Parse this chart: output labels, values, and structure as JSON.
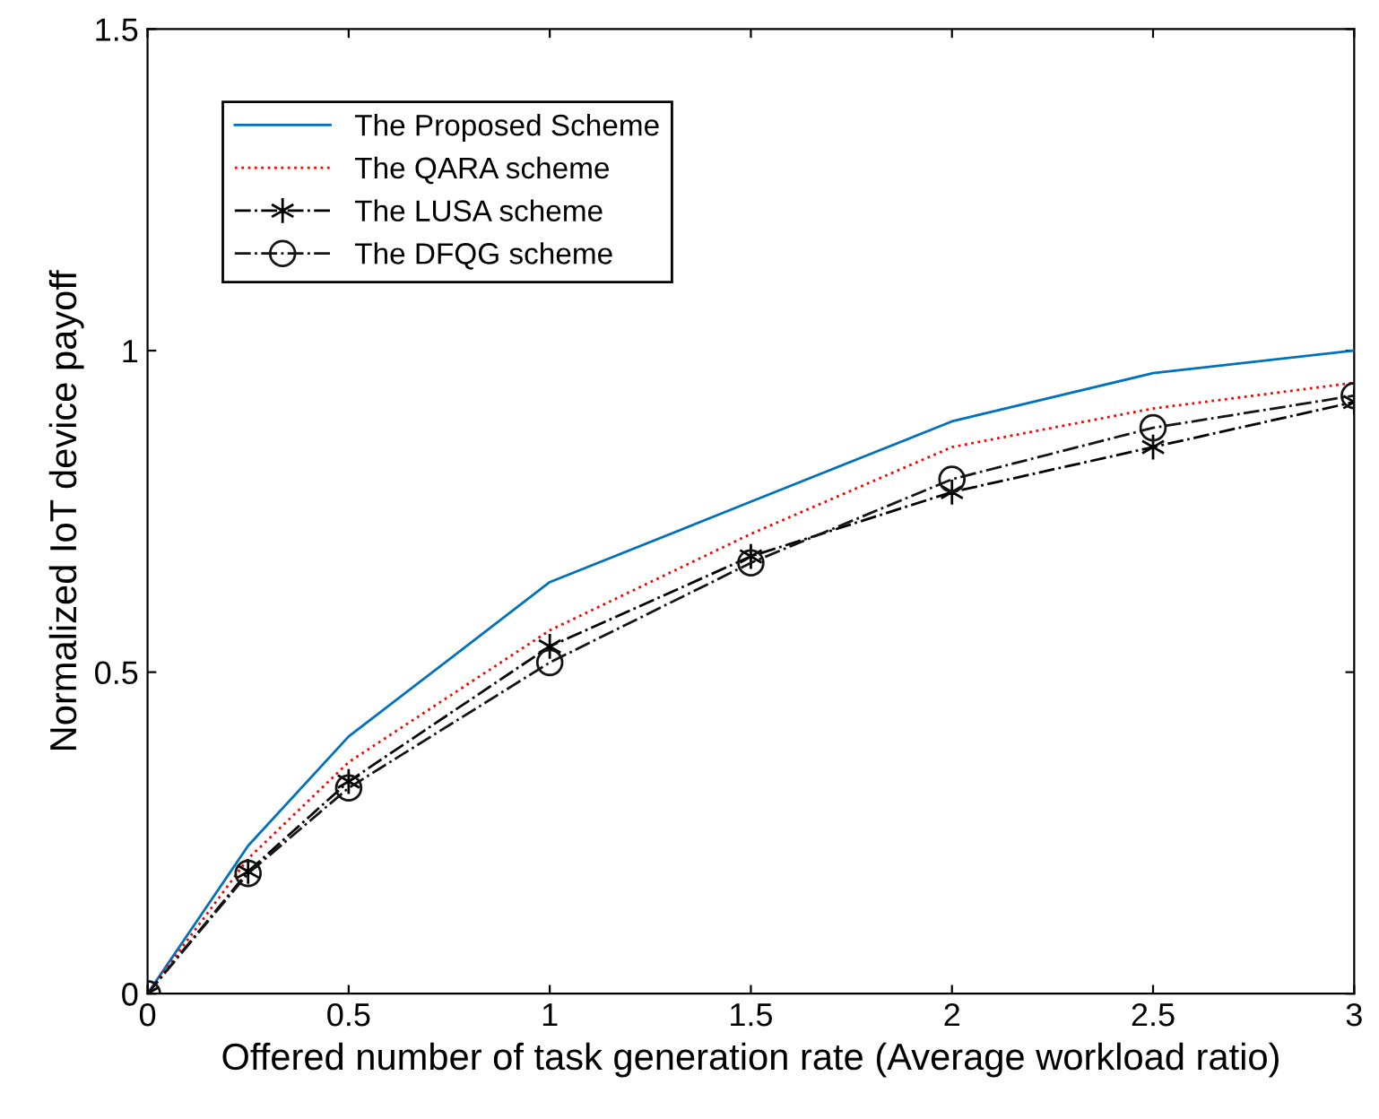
{
  "chart_data": {
    "type": "line",
    "xlabel": "Offered number of task generation rate (Average workload ratio)",
    "ylabel": "Normalized IoT device payoff",
    "x": [
      0,
      0.25,
      0.5,
      1,
      1.5,
      2,
      2.5,
      3
    ],
    "series": [
      {
        "name": "The Proposed Scheme",
        "color": "#0072bd",
        "line_style": "solid",
        "marker": "none",
        "values": [
          0,
          0.23,
          0.4,
          0.64,
          0.765,
          0.89,
          0.965,
          1.0
        ]
      },
      {
        "name": "The QARA scheme",
        "color": "#ff0000",
        "line_style": "dotted",
        "marker": "none",
        "values": [
          0,
          0.21,
          0.36,
          0.565,
          0.715,
          0.85,
          0.91,
          0.95
        ]
      },
      {
        "name": "The LUSA scheme",
        "color": "#000000",
        "line_style": "dashdot",
        "marker": "cross",
        "values": [
          0,
          0.19,
          0.33,
          0.54,
          0.68,
          0.78,
          0.85,
          0.92
        ]
      },
      {
        "name": "The DFQG scheme",
        "color": "#141414",
        "line_style": "dashdot",
        "marker": "circle",
        "values": [
          0,
          0.187,
          0.32,
          0.515,
          0.67,
          0.8,
          0.88,
          0.93
        ]
      }
    ],
    "xlim": [
      0,
      3
    ],
    "ylim": [
      0,
      1.5
    ],
    "xticks": [
      0,
      0.5,
      1,
      1.5,
      2,
      2.5,
      3
    ],
    "yticks": [
      0,
      0.5,
      1,
      1.5
    ],
    "grid": false,
    "legend": "top left"
  }
}
